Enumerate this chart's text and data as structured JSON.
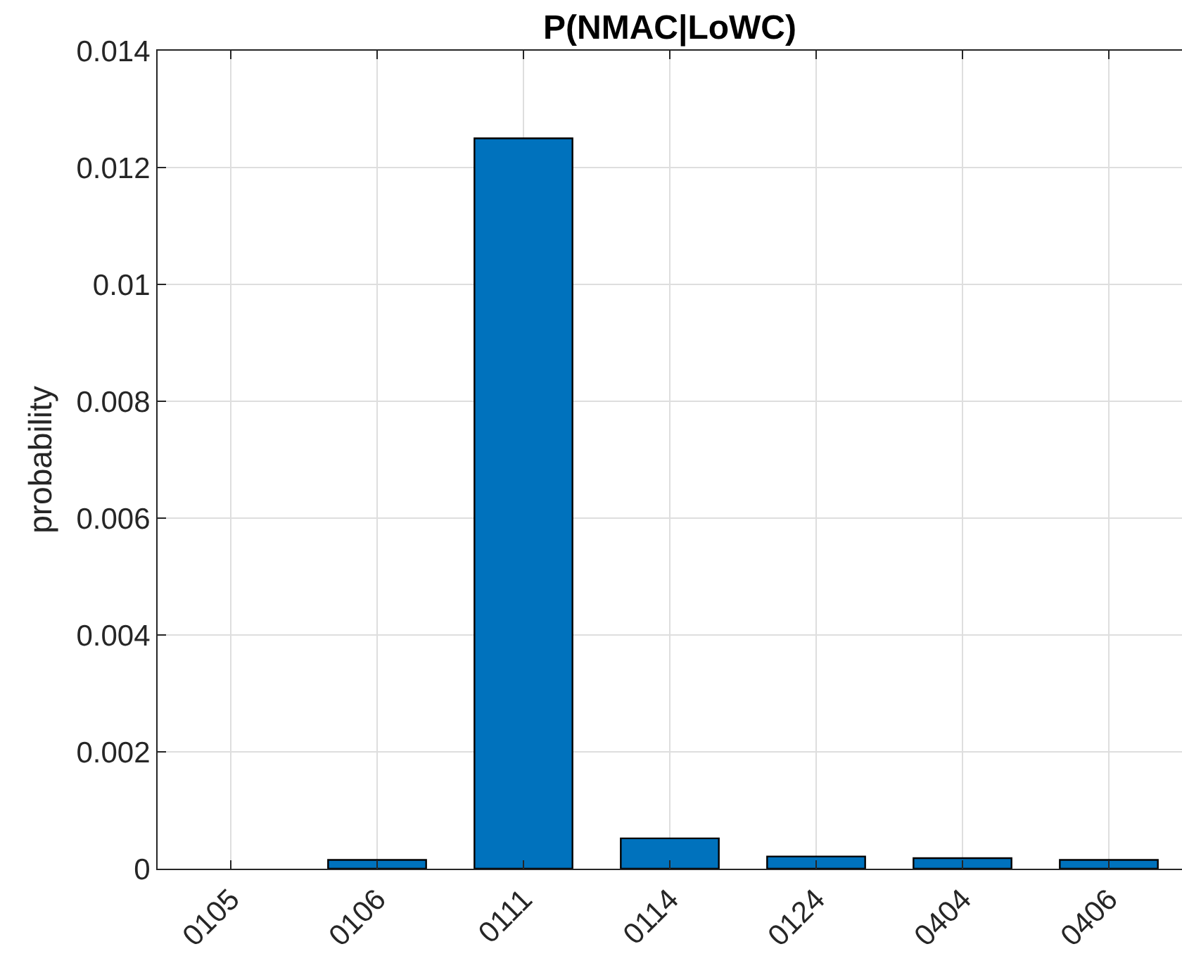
{
  "chart_data": {
    "type": "bar",
    "title": "P(NMAC|LoWC)",
    "ylabel": "probability",
    "categories": [
      "0105",
      "0106",
      "0111",
      "0114",
      "0124",
      "0404",
      "0406"
    ],
    "values": [
      0,
      0.00015,
      0.0125,
      0.00052,
      0.00021,
      0.00018,
      0.00015
    ],
    "color": "#0072bd",
    "ylim": [
      0,
      0.014
    ],
    "yticks": [
      0,
      0.002,
      0.004,
      0.006,
      0.008,
      0.01,
      0.012,
      0.014
    ],
    "grid": true
  }
}
